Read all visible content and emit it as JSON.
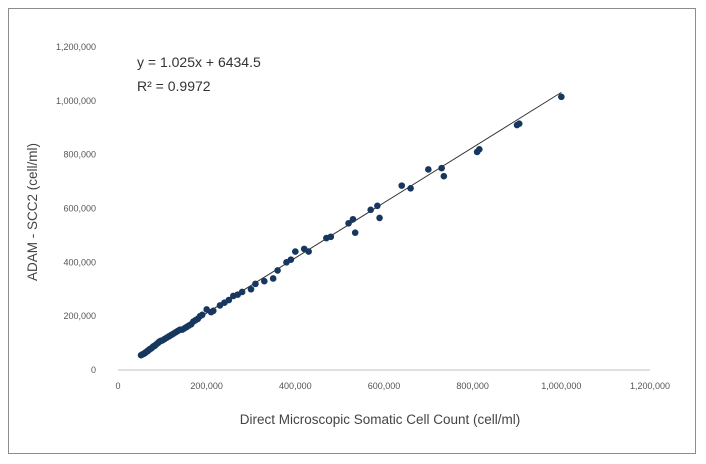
{
  "chart_data": {
    "type": "scatter",
    "xlabel": "Direct Microscopic Somatic Cell Count (cell/ml)",
    "ylabel": "ADAM - SCC2 (cell/ml)",
    "xlim": [
      0,
      1200000
    ],
    "ylim": [
      0,
      1200000
    ],
    "x_ticks": [
      "0",
      "200,000",
      "400,000",
      "600,000",
      "800,000",
      "1,000,000",
      "1,200,000"
    ],
    "y_ticks": [
      "0",
      "200,000",
      "400,000",
      "600,000",
      "800,000",
      "1,000,000",
      "1,200,000"
    ],
    "grid": false,
    "legend": "none",
    "point_color": "#17375e",
    "trendline": {
      "slope": 1.025,
      "intercept": 6434.5,
      "color": "#333333"
    },
    "annotations": {
      "equation": "y = 1.025x + 6434.5",
      "r_squared": "R² = 0.9972"
    },
    "series": [
      {
        "x": [
          52000,
          55000,
          58000,
          60000,
          62000,
          64000,
          66000,
          68000,
          70000,
          72000,
          75000,
          78000,
          80000,
          83000,
          86000,
          90000,
          93000,
          96000,
          100000,
          105000,
          110000,
          115000,
          120000,
          125000,
          130000,
          135000,
          140000,
          145000,
          150000,
          155000,
          160000,
          165000,
          170000,
          175000,
          180000,
          185000,
          190000,
          200000,
          210000,
          215000,
          230000,
          240000,
          250000,
          260000,
          270000,
          280000,
          300000,
          310000,
          330000,
          350000,
          360000,
          380000,
          390000,
          400000,
          420000,
          430000,
          470000,
          480000,
          520000,
          530000,
          535000,
          570000,
          585000,
          590000,
          640000,
          660000,
          700000,
          730000,
          735000,
          810000,
          815000,
          900000,
          905000,
          1000000
        ],
        "y": [
          55000,
          58000,
          60000,
          62000,
          65000,
          67000,
          70000,
          72000,
          75000,
          78000,
          80000,
          85000,
          88000,
          90000,
          95000,
          100000,
          105000,
          108000,
          110000,
          115000,
          120000,
          125000,
          130000,
          135000,
          140000,
          145000,
          150000,
          150000,
          155000,
          160000,
          165000,
          170000,
          180000,
          185000,
          190000,
          200000,
          205000,
          225000,
          215000,
          220000,
          240000,
          250000,
          260000,
          275000,
          280000,
          290000,
          300000,
          320000,
          330000,
          340000,
          370000,
          400000,
          410000,
          440000,
          450000,
          440000,
          490000,
          495000,
          545000,
          560000,
          510000,
          595000,
          610000,
          565000,
          685000,
          675000,
          745000,
          750000,
          720000,
          810000,
          820000,
          910000,
          915000,
          1015000
        ]
      }
    ]
  }
}
